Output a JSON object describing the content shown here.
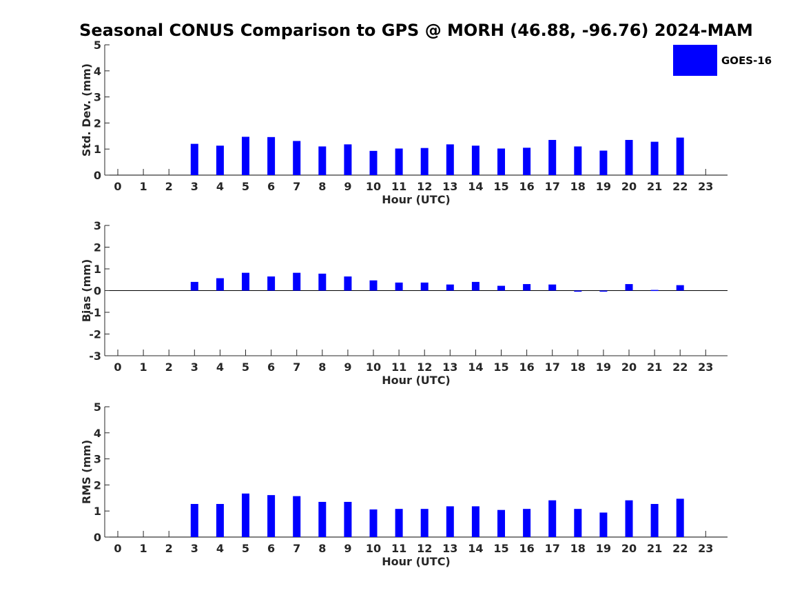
{
  "title": "Seasonal CONUS Comparison to GPS @ MORH (46.88, -96.76) 2024-MAM",
  "colors": {
    "bar": "#0000ff",
    "axis": "#262626",
    "background": "#ffffff"
  },
  "chart_data": [
    {
      "type": "bar",
      "xlabel": "Hour (UTC)",
      "ylabel": "Std. Dev. (mm)",
      "ylim": [
        0,
        5
      ],
      "yticks": [
        "0",
        "1",
        "2",
        "3",
        "4",
        "5"
      ],
      "categories": [
        "0",
        "1",
        "2",
        "3",
        "4",
        "5",
        "6",
        "7",
        "8",
        "9",
        "10",
        "11",
        "12",
        "13",
        "14",
        "15",
        "16",
        "17",
        "18",
        "19",
        "20",
        "21",
        "22",
        "23"
      ],
      "series": [
        {
          "name": "GOES-16",
          "values": [
            null,
            null,
            null,
            1.2,
            1.13,
            1.47,
            1.46,
            1.31,
            1.1,
            1.18,
            0.93,
            1.02,
            1.04,
            1.18,
            1.13,
            1.02,
            1.05,
            1.35,
            1.1,
            0.94,
            1.35,
            1.28,
            1.44,
            null
          ]
        }
      ],
      "legend": {
        "position": "top-right"
      },
      "grid": false
    },
    {
      "type": "bar",
      "xlabel": "Hour (UTC)",
      "ylabel": "Bias (mm)",
      "ylim": [
        -3,
        3
      ],
      "yticks": [
        "-3",
        "-2",
        "-1",
        "0",
        "1",
        "2",
        "3"
      ],
      "categories": [
        "0",
        "1",
        "2",
        "3",
        "4",
        "5",
        "6",
        "7",
        "8",
        "9",
        "10",
        "11",
        "12",
        "13",
        "14",
        "15",
        "16",
        "17",
        "18",
        "19",
        "20",
        "21",
        "22",
        "23"
      ],
      "series": [
        {
          "name": "GOES-16",
          "values": [
            null,
            null,
            null,
            0.4,
            0.57,
            0.82,
            0.65,
            0.82,
            0.78,
            0.65,
            0.47,
            0.37,
            0.37,
            0.28,
            0.4,
            0.22,
            0.3,
            0.28,
            -0.05,
            -0.02,
            0.3,
            0.03,
            0.25,
            null
          ]
        }
      ],
      "grid": false
    },
    {
      "type": "bar",
      "xlabel": "Hour (UTC)",
      "ylabel": "RMS (mm)",
      "ylim": [
        0,
        5
      ],
      "yticks": [
        "0",
        "1",
        "2",
        "3",
        "4",
        "5"
      ],
      "categories": [
        "0",
        "1",
        "2",
        "3",
        "4",
        "5",
        "6",
        "7",
        "8",
        "9",
        "10",
        "11",
        "12",
        "13",
        "14",
        "15",
        "16",
        "17",
        "18",
        "19",
        "20",
        "21",
        "22",
        "23"
      ],
      "series": [
        {
          "name": "GOES-16",
          "values": [
            null,
            null,
            null,
            1.27,
            1.27,
            1.67,
            1.61,
            1.57,
            1.35,
            1.35,
            1.06,
            1.08,
            1.08,
            1.18,
            1.18,
            1.04,
            1.08,
            1.41,
            1.08,
            0.94,
            1.41,
            1.27,
            1.47,
            null
          ]
        }
      ],
      "grid": false
    }
  ]
}
